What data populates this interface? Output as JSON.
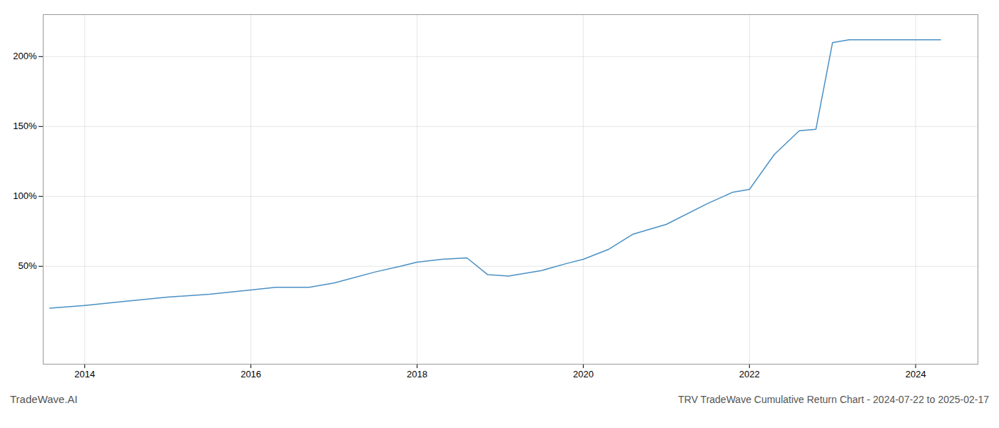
{
  "chart_data": {
    "type": "line",
    "title": "TRV TradeWave Cumulative Return Chart - 2024-07-22 to 2025-02-17",
    "annotations": [
      "TradeWave.AI"
    ],
    "x": [
      2013.58,
      2014.0,
      2014.5,
      2015.0,
      2015.5,
      2016.0,
      2016.3,
      2016.7,
      2017.0,
      2017.5,
      2017.8,
      2018.0,
      2018.3,
      2018.6,
      2018.85,
      2019.1,
      2019.5,
      2019.8,
      2020.0,
      2020.3,
      2020.6,
      2021.0,
      2021.5,
      2021.8,
      2022.0,
      2022.3,
      2022.6,
      2022.8,
      2023.0,
      2023.2,
      2023.5,
      2024.0,
      2024.3
    ],
    "values": [
      20,
      22,
      25,
      28,
      30,
      33,
      35,
      35,
      38,
      46,
      50,
      53,
      55,
      56,
      44,
      43,
      47,
      52,
      55,
      62,
      73,
      80,
      95,
      103,
      105,
      130,
      147,
      148,
      210,
      212,
      212,
      212,
      212
    ],
    "color": "#4a90c4",
    "xlim": [
      2013.5,
      2024.75
    ],
    "ylim": [
      -20,
      230
    ],
    "xticks": [
      2014,
      2016,
      2018,
      2020,
      2022,
      2024
    ],
    "yticks": [
      {
        "value": 50,
        "label": "50%"
      },
      {
        "value": 100,
        "label": "100%"
      },
      {
        "value": 150,
        "label": "150%"
      },
      {
        "value": 200,
        "label": "200%"
      }
    ],
    "grid": true
  }
}
